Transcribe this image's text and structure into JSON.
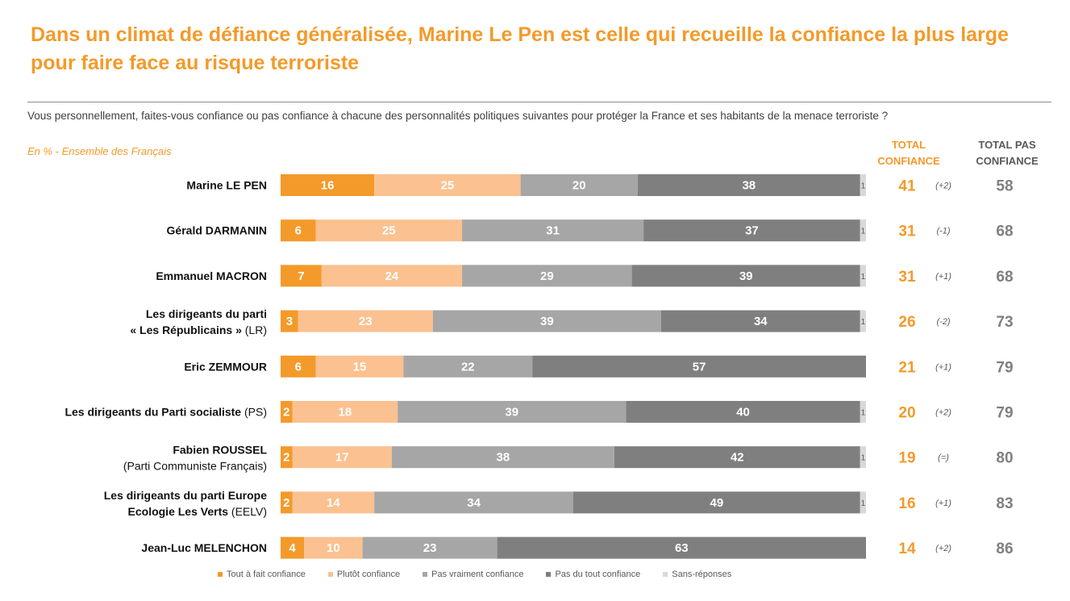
{
  "title": "Dans un climat de défiance généralisée, Marine Le Pen est celle qui recueille la confiance la plus large pour faire face au risque terroriste",
  "question": "Vous personnellement, faites-vous confiance ou pas confiance à chacune des personnalités politiques suivantes pour protéger la France et ses habitants de la menace terroriste ?",
  "subtitle": "En % - Ensemble des Français",
  "columns": {
    "total_confiance": "TOTAL CONFIANCE",
    "total_pas_confiance": "TOTAL PAS CONFIANCE"
  },
  "colors": {
    "accent": "#F39A2A",
    "tout_a_fait": "#F39A2A",
    "plutot": "#FBC190",
    "pas_vraiment": "#A6A6A6",
    "pas_du_tout": "#7F7F7F",
    "sans_reponse": "#D9D9D9",
    "pas_total_text": "#7F7F7F"
  },
  "chart_data": {
    "type": "bar",
    "orientation": "horizontal",
    "stacked": true,
    "categories": [
      {
        "line1": "Marine LE PEN",
        "line1_suffix": "",
        "line2": "",
        "line2_suffix": ""
      },
      {
        "line1": "Gérald DARMANIN",
        "line1_suffix": "",
        "line2": "",
        "line2_suffix": ""
      },
      {
        "line1": "Emmanuel MACRON",
        "line1_suffix": "",
        "line2": "",
        "line2_suffix": ""
      },
      {
        "line1": "Les dirigeants du parti",
        "line1_suffix": "",
        "line2": "« Les Républicains »",
        "line2_suffix": " (LR)"
      },
      {
        "line1": "Eric ZEMMOUR",
        "line1_suffix": "",
        "line2": "",
        "line2_suffix": ""
      },
      {
        "line1": "Les dirigeants du Parti socialiste",
        "line1_suffix": " (PS)",
        "line2": "",
        "line2_suffix": ""
      },
      {
        "line1": "Fabien ROUSSEL",
        "line1_suffix": "",
        "line2": "",
        "line2_suffix": "(Parti Communiste Français)"
      },
      {
        "line1": "Les dirigeants du parti Europe",
        "line1_suffix": "",
        "line2": "Ecologie Les Verts",
        "line2_suffix": " (EELV)"
      },
      {
        "line1": "Jean-Luc MELENCHON",
        "line1_suffix": "",
        "line2": "",
        "line2_suffix": ""
      }
    ],
    "series": [
      {
        "name": "Tout à fait confiance",
        "color": "#F39A2A",
        "values": [
          16,
          6,
          7,
          3,
          6,
          2,
          2,
          2,
          4
        ]
      },
      {
        "name": "Plutôt confiance",
        "color": "#FBC190",
        "values": [
          25,
          25,
          24,
          23,
          15,
          18,
          17,
          14,
          10
        ]
      },
      {
        "name": "Pas vraiment confiance",
        "color": "#A6A6A6",
        "values": [
          20,
          31,
          29,
          39,
          22,
          39,
          38,
          34,
          23
        ]
      },
      {
        "name": "Pas du tout confiance",
        "color": "#7F7F7F",
        "values": [
          38,
          37,
          39,
          34,
          57,
          40,
          42,
          49,
          63
        ]
      },
      {
        "name": "Sans-réponses",
        "color": "#D9D9D9",
        "values": [
          1,
          1,
          1,
          1,
          0,
          1,
          1,
          1,
          0
        ]
      }
    ],
    "total_confiance": [
      41,
      31,
      31,
      26,
      21,
      20,
      19,
      16,
      14
    ],
    "evolution": [
      "(+2)",
      "(-1)",
      "(+1)",
      "(-2)",
      "(+1)",
      "(+2)",
      "(=)",
      "(+1)",
      "(+2)"
    ],
    "total_pas_confiance": [
      58,
      68,
      68,
      73,
      79,
      79,
      80,
      83,
      86
    ],
    "unit": "%",
    "legend_position": "bottom"
  }
}
